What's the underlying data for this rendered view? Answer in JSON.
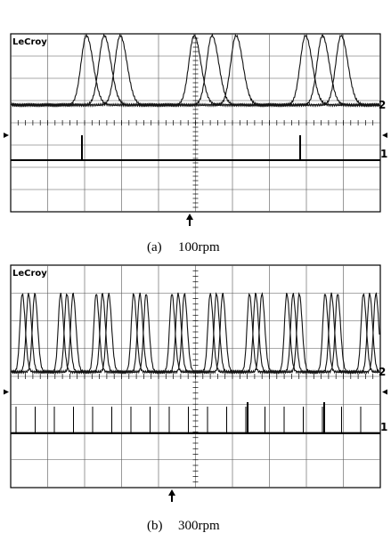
{
  "panels": [
    {
      "brand": "LeCroy",
      "channel_2": "2",
      "channel_1": "1",
      "label": "(a)",
      "speed": "100rpm"
    },
    {
      "brand": "LeCroy",
      "channel_2": "2",
      "channel_1": "1",
      "label": "(b)",
      "speed": "300rpm"
    }
  ]
}
